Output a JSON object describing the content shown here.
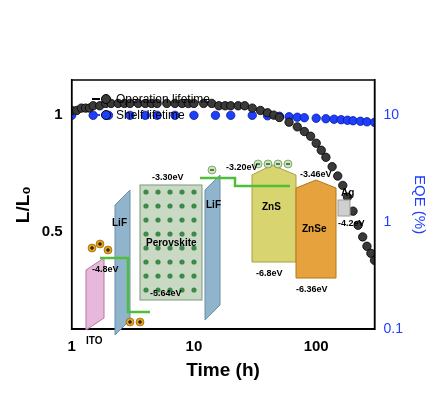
{
  "chart_data": {
    "type": "scatter",
    "x_label": "Time (h)",
    "y_label": "L/L₀",
    "y2_label": "EQE (%)",
    "log": "x",
    "xlim": [
      1,
      300
    ],
    "xticks": [
      1,
      10,
      100
    ],
    "ylim": [
      0.086,
      1.15
    ],
    "yticks": [
      0.5,
      1
    ],
    "y2lim": [
      0.1,
      21.4
    ],
    "y2ticks": [
      0.1,
      1,
      10
    ],
    "grid": false,
    "legend": "upper left",
    "series": [
      {
        "name": "Operation lifetime",
        "color": "#000000",
        "marker": "circle",
        "x": [
          1,
          1.1,
          1.2,
          1.3,
          1.4,
          1.5,
          1.7,
          1.9,
          2.1,
          2.4,
          2.7,
          3,
          3.5,
          4,
          4.5,
          5,
          6,
          7,
          8,
          9,
          10,
          12,
          14,
          16,
          18,
          20,
          23,
          26,
          30,
          35,
          40,
          45,
          50,
          60,
          70,
          80,
          90,
          100,
          110,
          120,
          135,
          150,
          165,
          180,
          200,
          220,
          240,
          260,
          280,
          300
        ],
        "values": [
          1.02,
          1.02,
          1.03,
          1.03,
          1.03,
          1.04,
          1.04,
          1.05,
          1.05,
          1.05,
          1.05,
          1.05,
          1.05,
          1.05,
          1.05,
          1.05,
          1.05,
          1.05,
          1.05,
          1.05,
          1.05,
          1.05,
          1.05,
          1.04,
          1.04,
          1.04,
          1.04,
          1.04,
          1.03,
          1.02,
          1.01,
          1.0,
          0.99,
          0.97,
          0.95,
          0.93,
          0.91,
          0.88,
          0.85,
          0.82,
          0.78,
          0.74,
          0.7,
          0.65,
          0.59,
          0.53,
          0.48,
          0.44,
          0.41,
          0.38
        ]
      },
      {
        "name": "Shelf lifetime",
        "color": "#1f3fff",
        "marker": "circle",
        "axis": "y2",
        "x": [
          1,
          1.5,
          2,
          3,
          4,
          5,
          7,
          10,
          15,
          20,
          30,
          40,
          50,
          60,
          70,
          80,
          100,
          120,
          140,
          160,
          180,
          200,
          230,
          260,
          300
        ],
        "values": [
          10,
          10,
          10,
          10,
          10,
          10,
          10,
          10,
          10,
          10,
          10,
          9.9,
          9.8,
          9.7,
          9.6,
          9.5,
          9.4,
          9.3,
          9.2,
          9.1,
          9.0,
          8.9,
          8.8,
          8.7,
          8.6
        ]
      }
    ]
  },
  "inset": {
    "layers": [
      "ITO",
      "LiF",
      "Perovskite",
      "LiF",
      "ZnS",
      "ZnSe",
      "Ag"
    ],
    "levels": [
      "-4.8eV",
      "-3.30eV",
      "-5.64eV",
      "-3.20eV",
      "-3.46eV",
      "-6.8eV",
      "-6.36eV",
      "-4.2eV"
    ]
  }
}
